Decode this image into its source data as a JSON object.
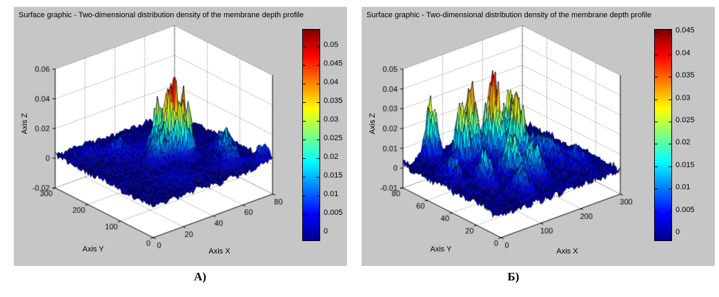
{
  "captions": {
    "a": "А)",
    "b": "Б)"
  },
  "colors": {
    "figure_bg": "#c6c6c6",
    "axes_bg": "#ffffff",
    "axis_line": "#000000",
    "jet_stops": [
      {
        "t": 0,
        "c": "#00008f"
      },
      {
        "t": 0.125,
        "c": "#0000ff"
      },
      {
        "t": 0.375,
        "c": "#00ffff"
      },
      {
        "t": 0.625,
        "c": "#ffff00"
      },
      {
        "t": 0.875,
        "c": "#ff0000"
      },
      {
        "t": 1,
        "c": "#800000"
      }
    ]
  },
  "chart_data": [
    {
      "type": "surface",
      "title": "Surface graphic - Two-dimensional distribution density of the membrane depth profile",
      "xlabel": "Axis X",
      "ylabel": "Axis Y",
      "zlabel": "Axis Z",
      "x_range": [
        0,
        80
      ],
      "y_range": [
        0,
        300
      ],
      "z_range": [
        -0.02,
        0.06
      ],
      "x_ticks": [
        "0",
        "20",
        "40",
        "60",
        "80"
      ],
      "y_ticks": [
        "0",
        "100",
        "200",
        "300"
      ],
      "z_ticks": [
        "-0.02",
        "0",
        "0.02",
        "0.04",
        "0.06"
      ],
      "colorbar_ticks": [
        "0",
        "0.005",
        "0.01",
        "0.015",
        "0.02",
        "0.025",
        "0.03",
        "0.035",
        "0.04",
        "0.045",
        "0.05"
      ],
      "colorbar_range": [
        -0.002,
        0.0545
      ],
      "color_range": [
        0,
        0.0555
      ],
      "colormap": "jet",
      "grid": true,
      "peaks": [
        {
          "x": 45,
          "y": 148,
          "h": 0.052,
          "sx": 2.8,
          "sy": 11
        },
        {
          "x": 42,
          "y": 176,
          "h": 0.03,
          "sx": 3.0,
          "sy": 10
        },
        {
          "x": 48,
          "y": 122,
          "h": 0.04,
          "sx": 3.2,
          "sy": 10
        },
        {
          "x": 36,
          "y": 142,
          "h": 0.018,
          "sx": 4.0,
          "sy": 14
        },
        {
          "x": 52,
          "y": 200,
          "h": 0.012,
          "sx": 4.0,
          "sy": 12
        },
        {
          "x": 65,
          "y": 72,
          "h": 0.017,
          "sx": 4.0,
          "sy": 14
        },
        {
          "x": 61,
          "y": 40,
          "h": 0.013,
          "sx": 4.5,
          "sy": 12
        },
        {
          "x": 70,
          "y": 104,
          "h": 0.015,
          "sx": 4.0,
          "sy": 12
        },
        {
          "x": 76,
          "y": 16,
          "h": 0.011,
          "sx": 5.0,
          "sy": 10
        },
        {
          "x": 25,
          "y": 226,
          "h": 0.007,
          "sx": 6.0,
          "sy": 24
        },
        {
          "x": 12,
          "y": 262,
          "h": 0.006,
          "sx": 6.0,
          "sy": 20
        },
        {
          "x": 40,
          "y": 160,
          "h": 0.006,
          "sx": 16,
          "sy": 60
        },
        {
          "x": 30,
          "y": 60,
          "h": 0.005,
          "sx": 8.0,
          "sy": 25
        }
      ],
      "noise": 0.0032,
      "base": 0.0012,
      "seed": 13
    },
    {
      "type": "surface",
      "title": "Surface graphic - Two-dimensional distribution density of the membrane depth profile",
      "xlabel": "Axis X",
      "ylabel": "Axis Y",
      "zlabel": "Axis Z",
      "x_range": [
        0,
        300
      ],
      "y_range": [
        0,
        80
      ],
      "z_range": [
        -0.01,
        0.05
      ],
      "x_ticks": [
        "0",
        "100",
        "200",
        "300"
      ],
      "y_ticks": [
        "0",
        "20",
        "40",
        "60",
        "80"
      ],
      "z_ticks": [
        "-0.01",
        "0",
        "0.01",
        "0.02",
        "0.03",
        "0.04",
        "0.05"
      ],
      "colorbar_ticks": [
        "0",
        "0.005",
        "0.01",
        "0.015",
        "0.02",
        "0.025",
        "0.03",
        "0.035",
        "0.04",
        "0.045"
      ],
      "colorbar_range": [
        -0.0015,
        0.0455
      ],
      "color_range": [
        0,
        0.046
      ],
      "colormap": "jet",
      "grid": true,
      "peaks": [
        {
          "x": 60,
          "y": 76,
          "h": 0.032,
          "sx": 8,
          "sy": 4
        },
        {
          "x": 88,
          "y": 60,
          "h": 0.033,
          "sx": 8,
          "sy": 4.5
        },
        {
          "x": 115,
          "y": 62,
          "h": 0.04,
          "sx": 8,
          "sy": 4.5
        },
        {
          "x": 150,
          "y": 55,
          "h": 0.044,
          "sx": 8,
          "sy": 5
        },
        {
          "x": 178,
          "y": 44,
          "h": 0.031,
          "sx": 8,
          "sy": 5
        },
        {
          "x": 192,
          "y": 56,
          "h": 0.027,
          "sx": 8,
          "sy": 5
        },
        {
          "x": 120,
          "y": 30,
          "h": 0.019,
          "sx": 9,
          "sy": 5
        },
        {
          "x": 65,
          "y": 34,
          "h": 0.015,
          "sx": 9,
          "sy": 5
        },
        {
          "x": 150,
          "y": 22,
          "h": 0.016,
          "sx": 10,
          "sy": 5
        },
        {
          "x": 95,
          "y": 14,
          "h": 0.012,
          "sx": 10,
          "sy": 5
        },
        {
          "x": 30,
          "y": 50,
          "h": 0.012,
          "sx": 8,
          "sy": 6
        },
        {
          "x": 225,
          "y": 40,
          "h": 0.01,
          "sx": 16,
          "sy": 9
        },
        {
          "x": 255,
          "y": 22,
          "h": 0.007,
          "sx": 18,
          "sy": 9
        },
        {
          "x": 150,
          "y": 40,
          "h": 0.006,
          "sx": 55,
          "sy": 18
        }
      ],
      "noise": 0.0035,
      "base": 0.0015,
      "seed": 41
    }
  ]
}
